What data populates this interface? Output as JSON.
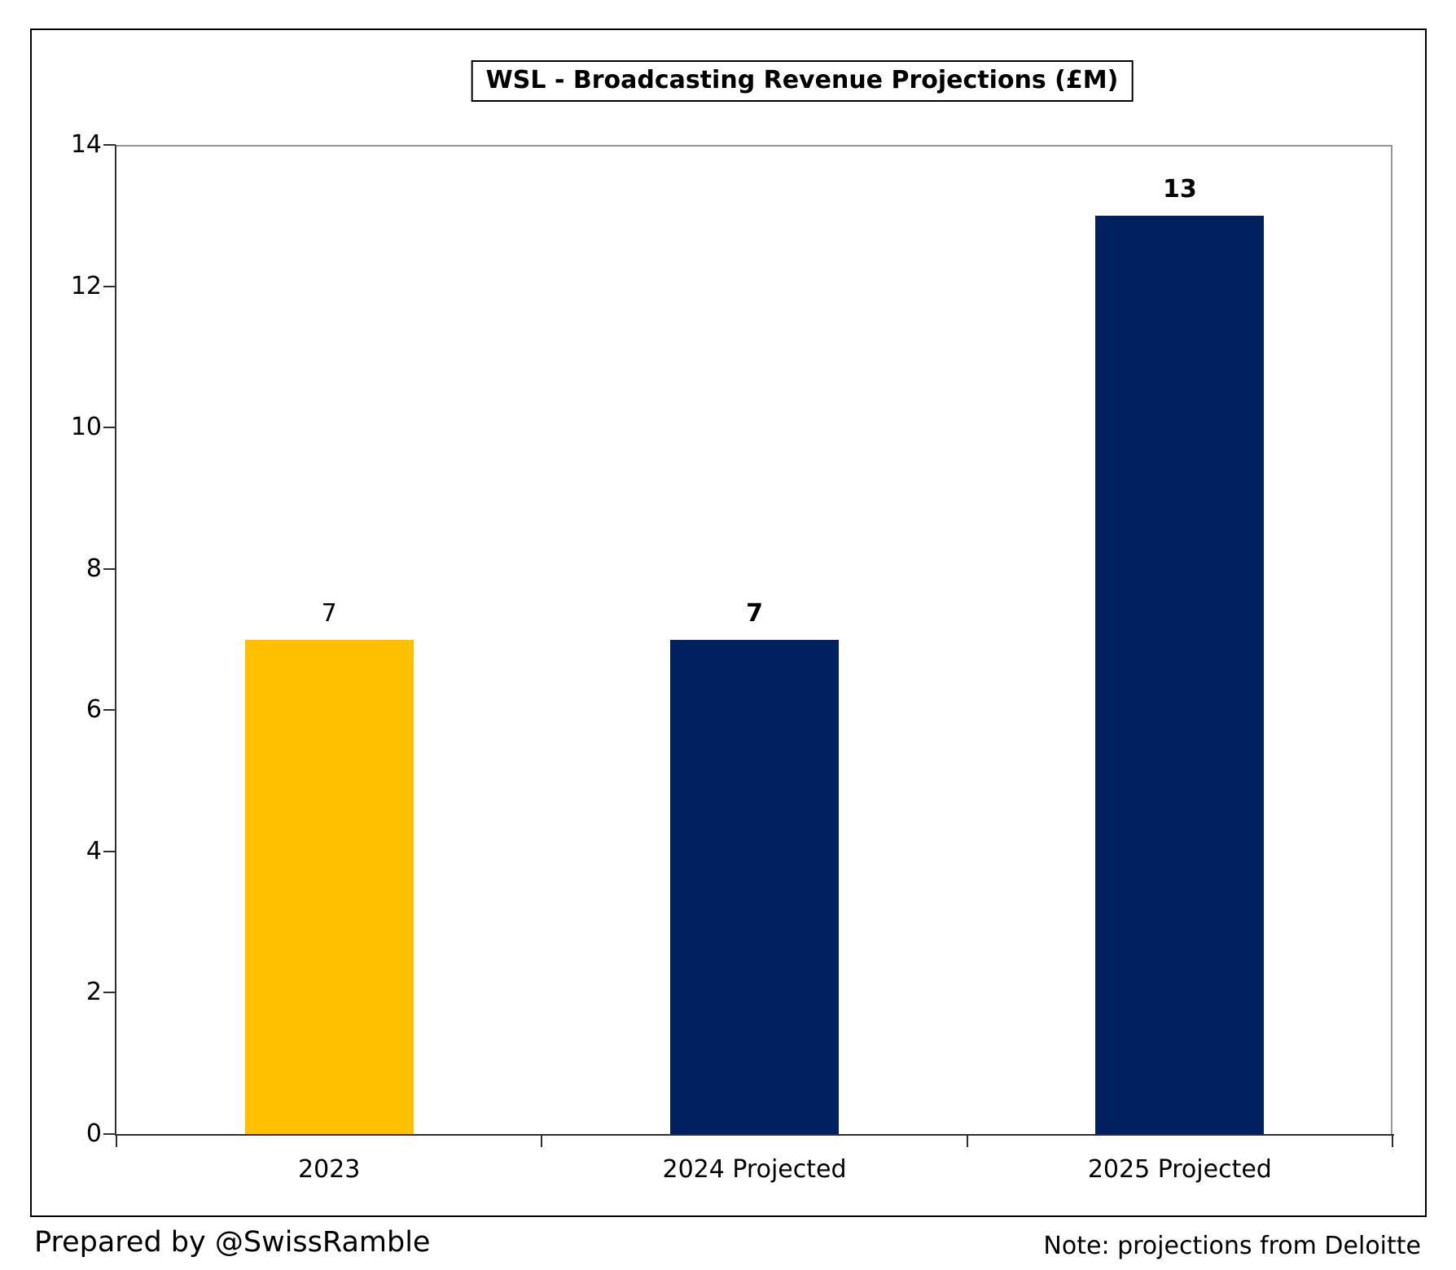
{
  "footer": {
    "left": "Prepared by @SwissRamble",
    "right": "Note: projections from Deloitte"
  },
  "colors": {
    "actual_bar": "#FFC000",
    "projected_bar": "#002060",
    "plot_border": "#969696",
    "axis_line": "#303030",
    "text": "#000000"
  },
  "chart_data": {
    "type": "bar",
    "title": "WSL - Broadcasting Revenue Projections (£M)",
    "categories": [
      "2023",
      "2024 Projected",
      "2025 Projected"
    ],
    "values": [
      7,
      7,
      13
    ],
    "bar_colors": [
      "#FFC000",
      "#002060",
      "#002060"
    ],
    "value_labels": [
      "7",
      "7",
      "13"
    ],
    "value_label_bold": [
      false,
      true,
      true
    ],
    "xlabel": "",
    "ylabel": "",
    "ylim": [
      0,
      14
    ],
    "ytick_step": 2,
    "ytick_labels": [
      "0",
      "2",
      "4",
      "6",
      "8",
      "10",
      "12",
      "14"
    ],
    "grid": false,
    "legend": false
  }
}
